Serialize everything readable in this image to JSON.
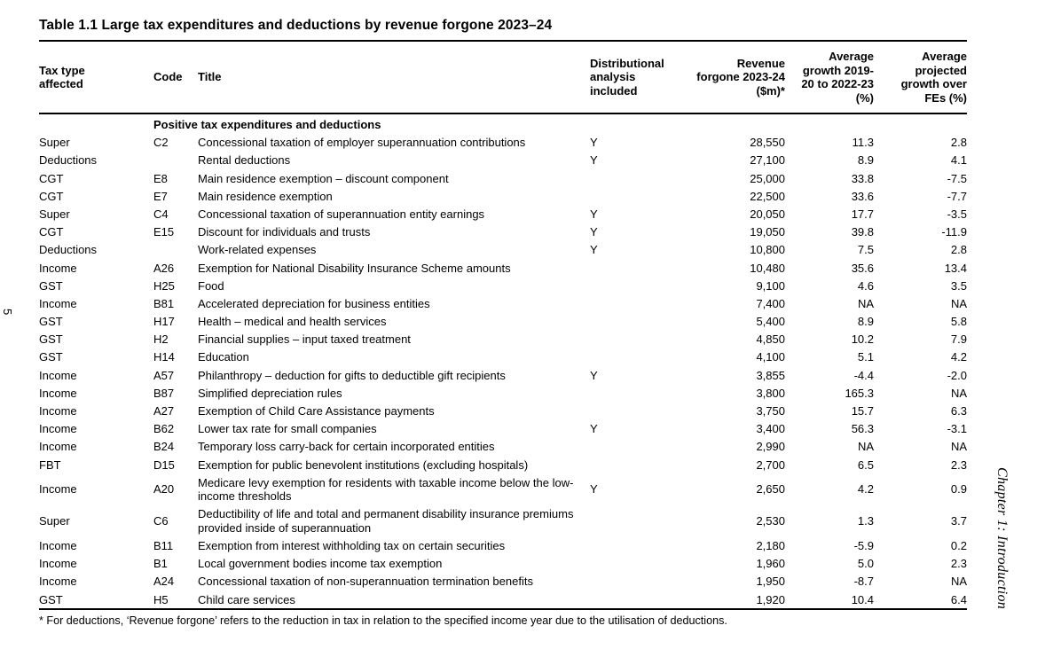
{
  "page": {
    "page_number": "5",
    "chapter_label": "Chapter 1: Introduction"
  },
  "table": {
    "title": "Table 1.1 Large tax expenditures and deductions by revenue forgone 2023–24",
    "headers": {
      "tax_type": "Tax type affected",
      "code": "Code",
      "title": "Title",
      "distributional": "Distributional analysis included",
      "revenue": "Revenue forgone 2023-24 ($m)*",
      "growth": "Average growth 2019-20 to 2022-23 (%)",
      "projected": "Average projected growth over FEs (%)"
    },
    "section_header": "Positive tax expenditures and deductions",
    "rows": [
      {
        "tax_type": "Super",
        "code": "C2",
        "title": "Concessional taxation of employer superannuation contributions",
        "dist": "Y",
        "revenue": "28,550",
        "growth": "11.3",
        "projected": "2.8"
      },
      {
        "tax_type": "Deductions",
        "code": "",
        "title": "Rental deductions",
        "dist": "Y",
        "revenue": "27,100",
        "growth": "8.9",
        "projected": "4.1"
      },
      {
        "tax_type": "CGT",
        "code": "E8",
        "title": "Main residence exemption – discount component",
        "dist": "",
        "revenue": "25,000",
        "growth": "33.8",
        "projected": "-7.5"
      },
      {
        "tax_type": "CGT",
        "code": "E7",
        "title": "Main residence exemption",
        "dist": "",
        "revenue": "22,500",
        "growth": "33.6",
        "projected": "-7.7"
      },
      {
        "tax_type": "Super",
        "code": "C4",
        "title": "Concessional taxation of superannuation entity earnings",
        "dist": "Y",
        "revenue": "20,050",
        "growth": "17.7",
        "projected": "-3.5"
      },
      {
        "tax_type": "CGT",
        "code": "E15",
        "title": "Discount for individuals and trusts",
        "dist": "Y",
        "revenue": "19,050",
        "growth": "39.8",
        "projected": "-11.9"
      },
      {
        "tax_type": "Deductions",
        "code": "",
        "title": "Work-related expenses",
        "dist": "Y",
        "revenue": "10,800",
        "growth": "7.5",
        "projected": "2.8"
      },
      {
        "tax_type": "Income",
        "code": "A26",
        "title": "Exemption for National Disability Insurance Scheme amounts",
        "dist": "",
        "revenue": "10,480",
        "growth": "35.6",
        "projected": "13.4"
      },
      {
        "tax_type": "GST",
        "code": "H25",
        "title": "Food",
        "dist": "",
        "revenue": "9,100",
        "growth": "4.6",
        "projected": "3.5"
      },
      {
        "tax_type": "Income",
        "code": "B81",
        "title": "Accelerated depreciation for business entities",
        "dist": "",
        "revenue": "7,400",
        "growth": "NA",
        "projected": "NA"
      },
      {
        "tax_type": "GST",
        "code": "H17",
        "title": "Health – medical and health services",
        "dist": "",
        "revenue": "5,400",
        "growth": "8.9",
        "projected": "5.8"
      },
      {
        "tax_type": "GST",
        "code": "H2",
        "title": "Financial supplies – input taxed treatment",
        "dist": "",
        "revenue": "4,850",
        "growth": "10.2",
        "projected": "7.9"
      },
      {
        "tax_type": "GST",
        "code": "H14",
        "title": "Education",
        "dist": "",
        "revenue": "4,100",
        "growth": "5.1",
        "projected": "4.2"
      },
      {
        "tax_type": "Income",
        "code": "A57",
        "title": "Philanthropy – deduction for gifts to deductible gift recipients",
        "dist": "Y",
        "revenue": "3,855",
        "growth": "-4.4",
        "projected": "-2.0"
      },
      {
        "tax_type": "Income",
        "code": "B87",
        "title": "Simplified depreciation rules",
        "dist": "",
        "revenue": "3,800",
        "growth": "165.3",
        "projected": "NA"
      },
      {
        "tax_type": "Income",
        "code": "A27",
        "title": "Exemption of Child Care Assistance payments",
        "dist": "",
        "revenue": "3,750",
        "growth": "15.7",
        "projected": "6.3"
      },
      {
        "tax_type": "Income",
        "code": "B62",
        "title": "Lower tax rate for small companies",
        "dist": "Y",
        "revenue": "3,400",
        "growth": "56.3",
        "projected": "-3.1"
      },
      {
        "tax_type": "Income",
        "code": "B24",
        "title": "Temporary loss carry-back for certain incorporated entities",
        "dist": "",
        "revenue": "2,990",
        "growth": "NA",
        "projected": "NA"
      },
      {
        "tax_type": "FBT",
        "code": "D15",
        "title": "Exemption for public benevolent institutions (excluding hospitals)",
        "dist": "",
        "revenue": "2,700",
        "growth": "6.5",
        "projected": "2.3"
      },
      {
        "tax_type": "Income",
        "code": "A20",
        "title": "Medicare levy exemption for residents with taxable income below the low-income thresholds",
        "dist": "Y",
        "revenue": "2,650",
        "growth": "4.2",
        "projected": "0.9"
      },
      {
        "tax_type": "Super",
        "code": "C6",
        "title": "Deductibility of life and total and permanent disability insurance premiums provided inside of superannuation",
        "dist": "",
        "revenue": "2,530",
        "growth": "1.3",
        "projected": "3.7"
      },
      {
        "tax_type": "Income",
        "code": "B11",
        "title": "Exemption from interest withholding tax on certain securities",
        "dist": "",
        "revenue": "2,180",
        "growth": "-5.9",
        "projected": "0.2"
      },
      {
        "tax_type": "Income",
        "code": "B1",
        "title": "Local government bodies income tax exemption",
        "dist": "",
        "revenue": "1,960",
        "growth": "5.0",
        "projected": "2.3"
      },
      {
        "tax_type": "Income",
        "code": "A24",
        "title": "Concessional taxation of non-superannuation termination benefits",
        "dist": "",
        "revenue": "1,950",
        "growth": "-8.7",
        "projected": "NA"
      },
      {
        "tax_type": "GST",
        "code": "H5",
        "title": "Child care services",
        "dist": "",
        "revenue": "1,920",
        "growth": "10.4",
        "projected": "6.4"
      }
    ],
    "footnote": "* For deductions, ‘Revenue forgone’ refers to the reduction in tax in relation to the specified income year due to the utilisation of deductions."
  }
}
